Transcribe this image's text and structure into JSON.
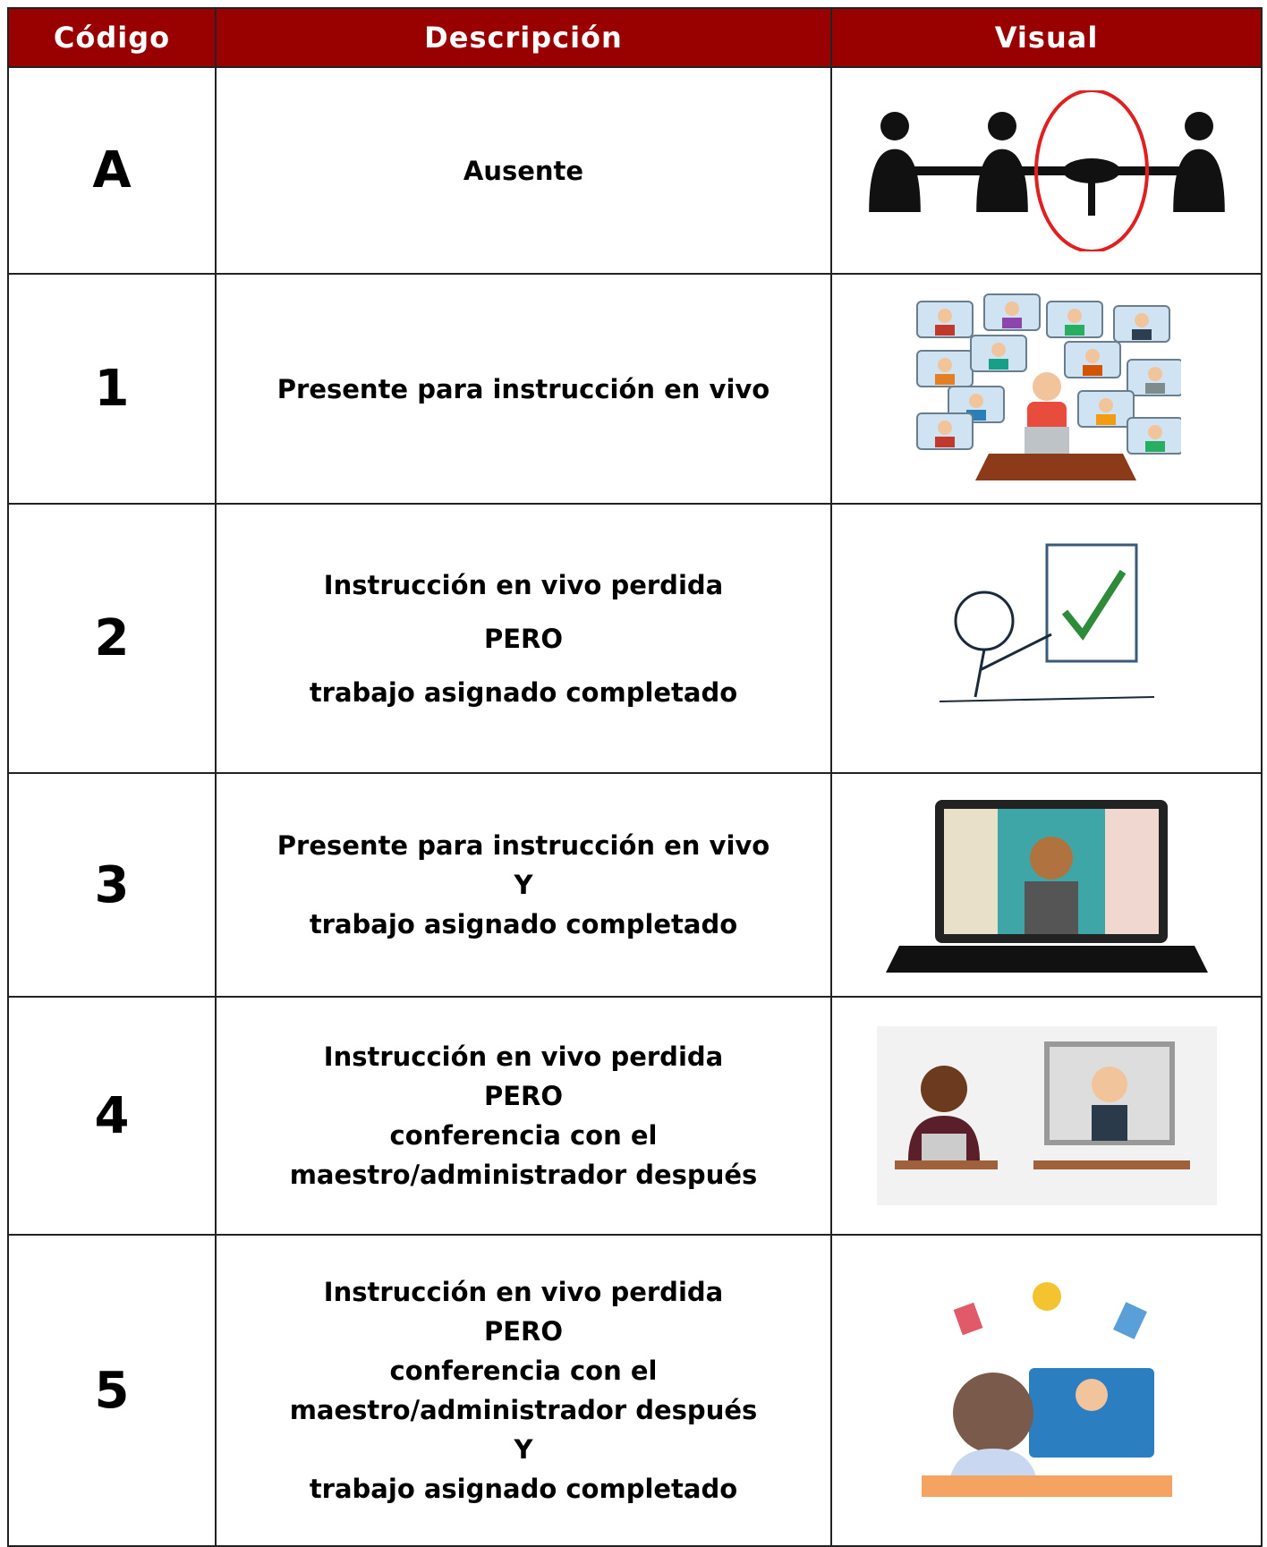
{
  "table": {
    "header": [
      "Código",
      "Descripción",
      "Visual"
    ],
    "rows": [
      {
        "code": "A",
        "description": [
          "Ausente"
        ]
      },
      {
        "code": "1",
        "description": [
          "Presente para instrucción en vivo"
        ]
      },
      {
        "code": "2",
        "description": [
          "Instrucción en vivo perdida",
          "PERO",
          "trabajo asignado completado"
        ]
      },
      {
        "code": "3",
        "description": [
          "Presente para instrucción en vivo",
          "Y",
          "trabajo asignado completado"
        ]
      },
      {
        "code": "4",
        "description": [
          "Instrucción en vivo perdida",
          "PERO",
          "conferencia con el",
          "maestro/administrador después"
        ]
      },
      {
        "code": "5",
        "description": [
          "Instrucción en vivo perdida",
          "PERO",
          "conferencia con el",
          "maestro/administrador después",
          "Y",
          "trabajo asignado completado"
        ]
      }
    ]
  }
}
